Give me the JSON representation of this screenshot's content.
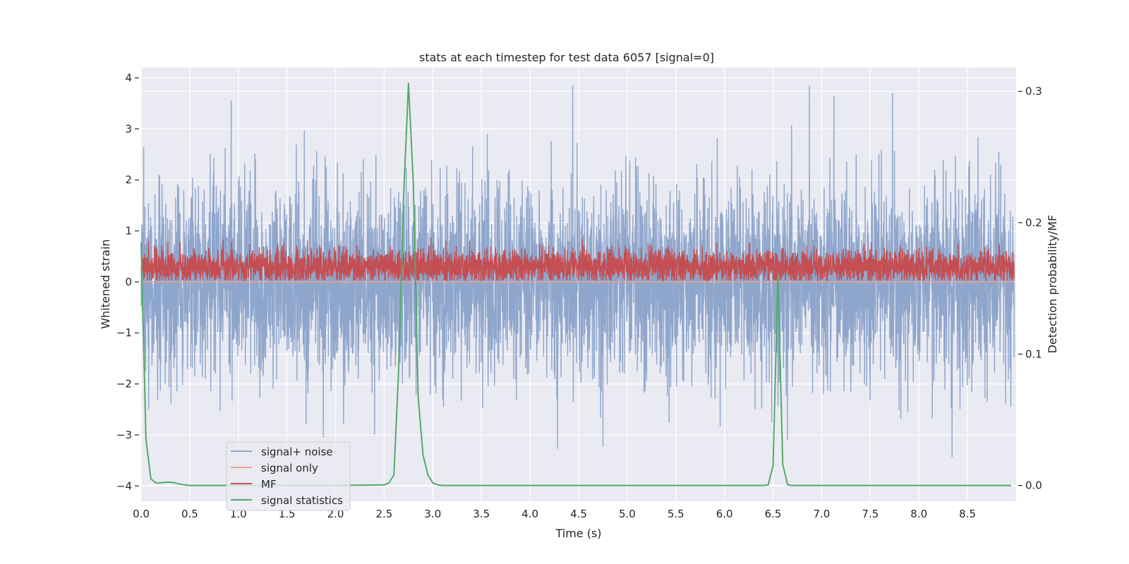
{
  "chart_data": {
    "type": "line",
    "title": "stats at each timestep for test data 6057 [signal=0]",
    "xlabel": "Time (s)",
    "ylabel": "Whitened strain",
    "y2label": "Detection probability/MF",
    "xlim": [
      0.0,
      9.0
    ],
    "ylim": [
      -4.3,
      4.2
    ],
    "y2lim": [
      -0.012,
      0.318
    ],
    "xticks": [
      0.0,
      0.5,
      1.0,
      1.5,
      2.0,
      2.5,
      3.0,
      3.5,
      4.0,
      4.5,
      5.0,
      5.5,
      6.0,
      6.5,
      7.0,
      7.5,
      8.0,
      8.5
    ],
    "xtick_labels": [
      "0.0",
      "0.5",
      "1.0",
      "1.5",
      "2.0",
      "2.5",
      "3.0",
      "3.5",
      "4.0",
      "4.5",
      "5.0",
      "5.5",
      "6.0",
      "6.5",
      "7.0",
      "7.5",
      "8.0",
      "8.5"
    ],
    "yticks": [
      -4,
      -3,
      -2,
      -1,
      0,
      1,
      2,
      3,
      4
    ],
    "ytick_labels": [
      "−4",
      "−3",
      "−2",
      "−1",
      "0",
      "1",
      "2",
      "3",
      "4"
    ],
    "y2ticks": [
      0.0,
      0.1,
      0.2,
      0.3
    ],
    "y2tick_labels": [
      "0.0",
      "0.1",
      "0.2",
      "0.3"
    ],
    "legend_position": "lower-left",
    "series": [
      {
        "name": "signal+ noise",
        "color": "#8fa6cc",
        "axis": "left",
        "description_stats": {
          "center": 0.0,
          "typical_low": -1.5,
          "typical_high": 1.5,
          "extreme_low": -4.0,
          "extreme_high": 3.85
        },
        "samples": 4500,
        "seed": 6057
      },
      {
        "name": "signal only",
        "color": "#e8a48b",
        "axis": "left",
        "constant": 0.0
      },
      {
        "name": "MF",
        "color": "#c44e52",
        "axis": "left",
        "description_stats": {
          "center": 0.3,
          "low": 0.03,
          "high": 0.97
        },
        "samples": 4500,
        "seed": 99
      },
      {
        "name": "signal statistics",
        "color": "#55a868",
        "axis": "right",
        "x": [
          0.0,
          0.05,
          0.1,
          0.15,
          0.2,
          0.25,
          0.3,
          0.35,
          0.4,
          0.45,
          0.5,
          0.55,
          0.6,
          0.65,
          0.7,
          0.75,
          0.8,
          0.85,
          0.9,
          2.0,
          2.5,
          2.55,
          2.6,
          2.65,
          2.7,
          2.75,
          2.8,
          2.85,
          2.9,
          2.95,
          3.0,
          3.05,
          3.1,
          3.15,
          3.2,
          3.5,
          6.0,
          6.4,
          6.45,
          6.5,
          6.55,
          6.6,
          6.65,
          6.7,
          8.95
        ],
        "values": [
          0.185,
          0.035,
          0.005,
          0.002,
          0.002,
          0.0025,
          0.0025,
          0.002,
          0.001,
          0.0005,
          0.0,
          0.0,
          0.0,
          0.0,
          0.0,
          0.0,
          0.0,
          0.0,
          0.0,
          0.0,
          0.0005,
          0.002,
          0.008,
          0.09,
          0.22,
          0.306,
          0.23,
          0.067,
          0.023,
          0.008,
          0.002,
          0.0005,
          0.0,
          0.0,
          0.0,
          0.0,
          0.0,
          0.0,
          0.0005,
          0.015,
          0.16,
          0.016,
          0.0005,
          0.0,
          0.0
        ]
      }
    ]
  }
}
